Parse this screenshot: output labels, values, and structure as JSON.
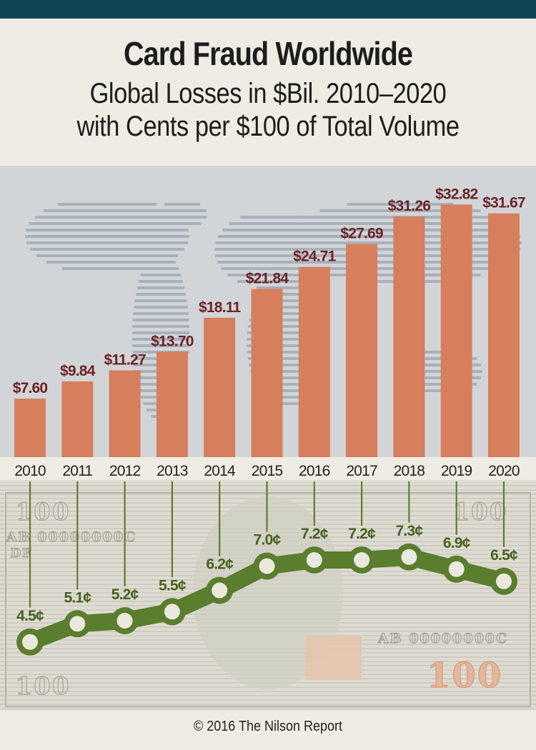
{
  "title": "Card Fraud Worldwide",
  "subtitle_line1": "Global Losses in $Bil. 2010–2020",
  "subtitle_line2": "with Cents per $100 of Total Volume",
  "copyright": "© 2016 The Nilson Report",
  "banknote_text": {
    "denomination": "100",
    "serial": "AB 00000000C",
    "plate": "DF"
  },
  "colors": {
    "header_bar": "#0f4355",
    "bar": "#d77e5c",
    "bar_label": "#6b2328",
    "line": "#5a7d2e",
    "cents_label": "#46621f",
    "map_band": "#d2d5d8",
    "note_band": "#dedcd2"
  },
  "chart_data": [
    {
      "type": "bar",
      "categories": [
        "2010",
        "2011",
        "2012",
        "2013",
        "2014",
        "2015",
        "2016",
        "2017",
        "2018",
        "2019",
        "2020"
      ],
      "values": [
        7.6,
        9.84,
        11.27,
        13.7,
        18.11,
        21.84,
        24.71,
        27.69,
        31.26,
        32.82,
        31.67
      ],
      "value_labels": [
        "$7.60",
        "$9.84",
        "$11.27",
        "$13.70",
        "$18.11",
        "$21.84",
        "$24.71",
        "$27.69",
        "$31.26",
        "$32.82",
        "$31.67"
      ],
      "ylim": [
        0,
        36
      ]
    },
    {
      "type": "line",
      "x": [
        "2010",
        "2011",
        "2012",
        "2013",
        "2014",
        "2015",
        "2016",
        "2017",
        "2018",
        "2019",
        "2020"
      ],
      "values": [
        4.5,
        5.1,
        5.2,
        5.5,
        6.2,
        7.0,
        7.2,
        7.2,
        7.3,
        6.9,
        6.5
      ],
      "value_labels": [
        "4.5¢",
        "5.1¢",
        "5.2¢",
        "5.5¢",
        "6.2¢",
        "7.0¢",
        "7.2¢",
        "7.2¢",
        "7.3¢",
        "6.9¢",
        "6.5¢"
      ],
      "ylim": [
        4.0,
        8.0
      ]
    }
  ]
}
